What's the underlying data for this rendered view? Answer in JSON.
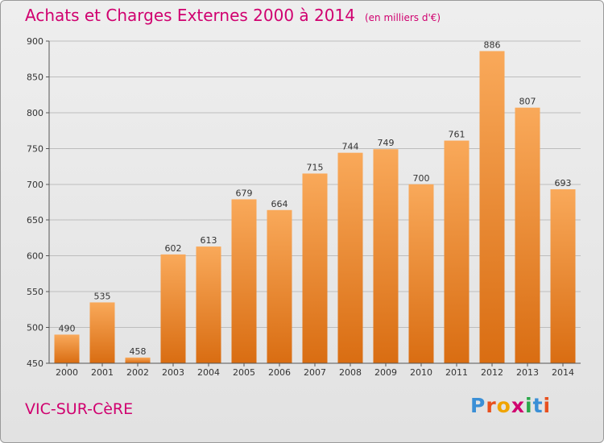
{
  "header": {
    "title": "Achats et Charges Externes 2000 à 2014",
    "subtitle": "(en milliers d'€)"
  },
  "footer": {
    "city": "VIC-SUR-CèRE",
    "logo_letters": [
      "P",
      "r",
      "o",
      "x",
      "i",
      "t",
      "i"
    ],
    "logo_colors": [
      "#3a8fd6",
      "#e8501e",
      "#f0a400",
      "#d0006f",
      "#2aa84a",
      "#3a8fd6",
      "#e8501e"
    ]
  },
  "colors": {
    "bar_top": "#f9a95a",
    "bar_bottom": "#d96d12",
    "grid": "#bdbdbd",
    "accent": "#d0006f"
  },
  "chart_data": {
    "type": "bar",
    "categories": [
      "2000",
      "2001",
      "2002",
      "2003",
      "2004",
      "2005",
      "2006",
      "2007",
      "2008",
      "2009",
      "2010",
      "2011",
      "2012",
      "2013",
      "2014"
    ],
    "values": [
      490,
      535,
      458,
      602,
      613,
      679,
      664,
      715,
      744,
      749,
      700,
      761,
      886,
      807,
      693
    ],
    "ylim": [
      450,
      900
    ],
    "yticks": [
      450,
      500,
      550,
      600,
      650,
      700,
      750,
      800,
      850,
      900
    ],
    "grid": true,
    "title": "Achats et Charges Externes 2000 à 2014",
    "ylabel": "(en milliers d'€)"
  }
}
